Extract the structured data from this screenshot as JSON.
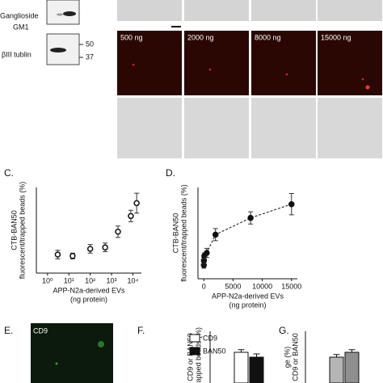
{
  "blot": {
    "labels": [
      "Ganglioside",
      "GM1",
      "βIII tublin"
    ],
    "markers": [
      "50",
      "37"
    ]
  },
  "images": {
    "labels": [
      "500 ng",
      "2000 ng",
      "8000 ng",
      "15000 ng"
    ]
  },
  "panel_e": {
    "panel": "E.",
    "label": "CD9"
  },
  "chart_data": [
    {
      "type": "scatter",
      "panel": "C.",
      "marker": "open",
      "log_x": true,
      "ylabel": [
        "CTB-BAN50",
        "fluorescent/trapped beads (%)"
      ],
      "xlabel": [
        "APP-N2a-derived EVs",
        "(ng protein)"
      ],
      "x": [
        3,
        15,
        100,
        500,
        2000,
        8000,
        15000
      ],
      "values": [
        13,
        12,
        17,
        18,
        29,
        40,
        49
      ],
      "errors": [
        3,
        2,
        3,
        3,
        4,
        4,
        7
      ],
      "xlim": [
        0.3,
        25000
      ],
      "ylim": [
        0,
        60
      ],
      "xticks": [
        {
          "value": 1,
          "label": "10⁰"
        },
        {
          "value": 10,
          "label": "10¹"
        },
        {
          "value": 100,
          "label": "10²"
        },
        {
          "value": 1000,
          "label": "10³"
        },
        {
          "value": 10000,
          "label": "10⁴"
        }
      ]
    },
    {
      "type": "scatter",
      "panel": "D.",
      "marker": "filled",
      "fit": "dashed",
      "ylabel": [
        "CTB-BAN50",
        "fluorescent/trapped beads (%)"
      ],
      "xlabel": [
        "APP-N2a-derived EVs",
        "(ng protein)"
      ],
      "x": [
        3,
        15,
        100,
        500,
        2000,
        8000,
        15000
      ],
      "values": [
        9,
        12,
        15,
        17,
        29,
        40,
        49
      ],
      "errors": [
        2,
        2,
        2,
        3,
        4,
        4,
        7
      ],
      "xlim": [
        -1000,
        16000
      ],
      "ylim": [
        0,
        60
      ],
      "xticks": [
        0,
        5000,
        10000,
        15000
      ]
    },
    {
      "type": "bar",
      "panel": "F.",
      "ylabel": [
        "CD9 or BAN50",
        "trapped beads (%)"
      ],
      "series": [
        {
          "name": "CD9",
          "color": "#ffffff",
          "values": [
            95
          ],
          "errors": [
            8
          ]
        },
        {
          "name": "BAN50",
          "color": "#111111",
          "values": [
            80
          ],
          "errors": [
            10
          ]
        }
      ],
      "ylim": [
        0,
        160
      ]
    },
    {
      "type": "bar",
      "panel": "G.",
      "ylabel": [
        "ge (%)",
        "CD9 or BAN50"
      ],
      "series": [
        {
          "color": "#b5b5b5",
          "values": [
            80
          ],
          "errors": [
            8
          ]
        },
        {
          "color": "#8f8f8f",
          "values": [
            95
          ],
          "errors": [
            8
          ]
        }
      ],
      "ylim": [
        0,
        160
      ]
    }
  ]
}
